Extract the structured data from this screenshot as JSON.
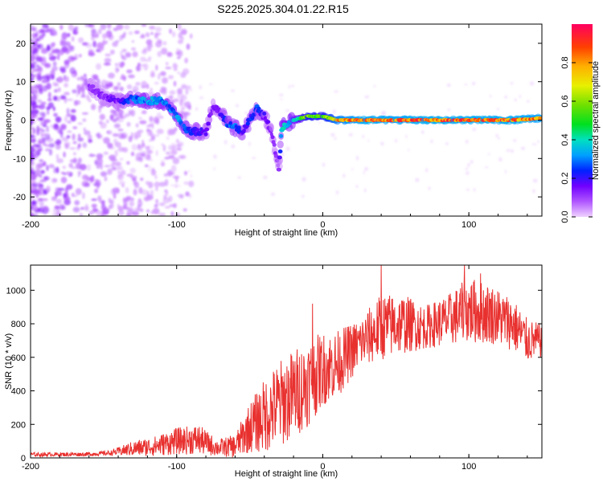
{
  "title": "S225.2025.304.01.22.R15",
  "chart_data": [
    {
      "type": "heatmap",
      "xlabel": "Height of straight line (km)",
      "ylabel": "Frequency (Hz)",
      "xlim": [
        -200,
        150
      ],
      "ylim": [
        -25,
        25
      ],
      "x_ticks": [
        -200,
        -100,
        0,
        100
      ],
      "y_ticks": [
        -20,
        -10,
        0,
        10,
        20
      ],
      "colorbar": {
        "label": "Normalized spectral amplitude",
        "range": [
          0,
          1
        ],
        "ticks": [
          "0.0",
          "0.2",
          "0.4",
          "0.6",
          "0.8"
        ],
        "tick_values": [
          0,
          0.2,
          0.4,
          0.6,
          0.8
        ]
      },
      "ridge": [
        {
          "x": -160,
          "y": 9,
          "amp": 0.12
        },
        {
          "x": -150,
          "y": 6,
          "amp": 0.15
        },
        {
          "x": -140,
          "y": 5,
          "amp": 0.18
        },
        {
          "x": -130,
          "y": 5.5,
          "amp": 0.3
        },
        {
          "x": -120,
          "y": 5,
          "amp": 0.35
        },
        {
          "x": -110,
          "y": 5,
          "amp": 0.35
        },
        {
          "x": -105,
          "y": 3,
          "amp": 0.3
        },
        {
          "x": -100,
          "y": 1,
          "amp": 0.35
        },
        {
          "x": -95,
          "y": -2,
          "amp": 0.3
        },
        {
          "x": -90,
          "y": -3,
          "amp": 0.25
        },
        {
          "x": -80,
          "y": -3,
          "amp": 0.2
        },
        {
          "x": -75,
          "y": 4,
          "amp": 0.15
        },
        {
          "x": -70,
          "y": 2,
          "amp": 0.2
        },
        {
          "x": -65,
          "y": -1,
          "amp": 0.3
        },
        {
          "x": -60,
          "y": -2,
          "amp": 0.3
        },
        {
          "x": -55,
          "y": -3,
          "amp": 0.2
        },
        {
          "x": -45,
          "y": 3,
          "amp": 0.3
        },
        {
          "x": -40,
          "y": 1,
          "amp": 0.2
        },
        {
          "x": -35,
          "y": -3,
          "amp": 0.15
        },
        {
          "x": -30,
          "y": -13,
          "amp": 0.12
        },
        {
          "x": -28,
          "y": -2,
          "amp": 0.4
        },
        {
          "x": -20,
          "y": 0,
          "amp": 0.4
        },
        {
          "x": -10,
          "y": 1,
          "amp": 0.65
        },
        {
          "x": 0,
          "y": 1,
          "amp": 0.6
        },
        {
          "x": 10,
          "y": 0,
          "amp": 0.85
        },
        {
          "x": 30,
          "y": 0,
          "amp": 0.95
        },
        {
          "x": 50,
          "y": 0,
          "amp": 0.92
        },
        {
          "x": 70,
          "y": 0,
          "amp": 0.95
        },
        {
          "x": 90,
          "y": 0,
          "amp": 0.95
        },
        {
          "x": 110,
          "y": 0,
          "amp": 0.95
        },
        {
          "x": 130,
          "y": 0,
          "amp": 0.95
        },
        {
          "x": 150,
          "y": 0.5,
          "amp": 0.9
        }
      ]
    },
    {
      "type": "line",
      "xlabel": "Height of straight line (km)",
      "ylabel": "SNR (10 * v/v)",
      "xlim": [
        -200,
        150
      ],
      "ylim": [
        0,
        1150
      ],
      "x_ticks": [
        -200,
        -100,
        0,
        100
      ],
      "y_ticks": [
        0,
        200,
        400,
        600,
        800,
        1000
      ],
      "color": "#e8312f",
      "envelope": [
        {
          "x": -200,
          "mean": 20,
          "amp": 12
        },
        {
          "x": -160,
          "mean": 22,
          "amp": 12
        },
        {
          "x": -145,
          "mean": 30,
          "amp": 15
        },
        {
          "x": -130,
          "mean": 55,
          "amp": 45
        },
        {
          "x": -115,
          "mean": 70,
          "amp": 60
        },
        {
          "x": -100,
          "mean": 100,
          "amp": 80
        },
        {
          "x": -85,
          "mean": 110,
          "amp": 90
        },
        {
          "x": -72,
          "mean": 60,
          "amp": 50
        },
        {
          "x": -60,
          "mean": 70,
          "amp": 70
        },
        {
          "x": -50,
          "mean": 180,
          "amp": 150
        },
        {
          "x": -40,
          "mean": 250,
          "amp": 220
        },
        {
          "x": -30,
          "mean": 320,
          "amp": 260
        },
        {
          "x": -20,
          "mean": 380,
          "amp": 270
        },
        {
          "x": -10,
          "mean": 450,
          "amp": 260
        },
        {
          "x": 0,
          "mean": 530,
          "amp": 220
        },
        {
          "x": 10,
          "mean": 560,
          "amp": 200
        },
        {
          "x": 25,
          "mean": 680,
          "amp": 150
        },
        {
          "x": 40,
          "mean": 780,
          "amp": 200
        },
        {
          "x": 55,
          "mean": 800,
          "amp": 180
        },
        {
          "x": 70,
          "mean": 780,
          "amp": 130
        },
        {
          "x": 85,
          "mean": 820,
          "amp": 150
        },
        {
          "x": 100,
          "mean": 880,
          "amp": 200
        },
        {
          "x": 115,
          "mean": 860,
          "amp": 180
        },
        {
          "x": 130,
          "mean": 800,
          "amp": 160
        },
        {
          "x": 140,
          "mean": 700,
          "amp": 130
        },
        {
          "x": 150,
          "mean": 700,
          "amp": 100
        }
      ],
      "peaks": [
        {
          "x": 40,
          "y": 1150
        },
        {
          "x": 97,
          "y": 1150
        },
        {
          "x": 108,
          "y": 1100
        },
        {
          "x": -7,
          "y": 920
        }
      ]
    }
  ]
}
